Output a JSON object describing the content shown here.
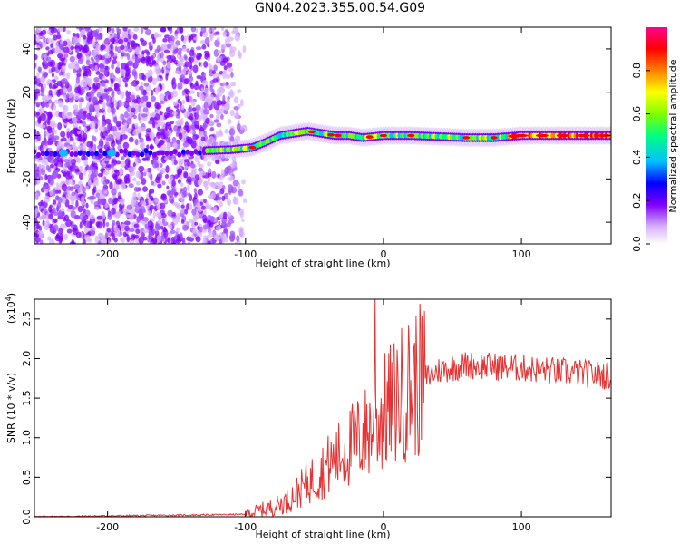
{
  "title": "GN04.2023.355.00.54.G09",
  "chart_data": [
    {
      "type": "heatmap",
      "name": "spectrogram",
      "xlabel": "Height of straight line (km)",
      "ylabel": "Frequency (Hz)",
      "xlim": [
        -253,
        165
      ],
      "ylim": [
        -50,
        50
      ],
      "xticks": [
        -200,
        -100,
        0,
        100
      ],
      "yticks": [
        -40,
        -20,
        0,
        20,
        40
      ],
      "colorbar": {
        "label": "Normalized spectral amplitude",
        "range": [
          0,
          1
        ],
        "ticks": [
          0.0,
          0.2,
          0.4,
          0.6,
          0.8
        ],
        "colormap": [
          "#ffffff",
          "#cc99ff",
          "#8000ff",
          "#0000ff",
          "#00c0ff",
          "#00ff80",
          "#80ff00",
          "#ffff00",
          "#ff8000",
          "#ff0000",
          "#ff00a0"
        ]
      },
      "ridge": {
        "x": [
          -130,
          -110,
          -95,
          -85,
          -75,
          -65,
          -55,
          -45,
          -35,
          -25,
          -15,
          0,
          20,
          40,
          60,
          80,
          100,
          120,
          140,
          165
        ],
        "y": [
          -7,
          -6.5,
          -5.5,
          -3,
          0,
          1,
          2,
          1,
          0,
          0,
          -1,
          0,
          0,
          -0.5,
          -1,
          -1,
          0,
          0,
          0,
          0
        ]
      },
      "noise_band_freq": -8
    },
    {
      "type": "line",
      "name": "snr",
      "xlabel": "Height of straight line (km)",
      "ylabel": "SNR (10 * v/v)",
      "y_multiplier": "(x10",
      "y_multiplier_exp": "4",
      "y_multiplier_close": ")",
      "xlim": [
        -253,
        165
      ],
      "ylim": [
        0,
        2.75
      ],
      "xticks": [
        -200,
        -100,
        0,
        100
      ],
      "yticks": [
        0.0,
        0.5,
        1.0,
        1.5,
        2.0,
        2.5
      ],
      "series_color": "#e63232",
      "envelope": {
        "x": [
          -253,
          -100,
          -90,
          -80,
          -70,
          -60,
          -50,
          -40,
          -30,
          -20,
          -10,
          0,
          10,
          20,
          30,
          40,
          60,
          80,
          100,
          120,
          140,
          165
        ],
        "y": [
          0.0,
          0.03,
          0.08,
          0.12,
          0.2,
          0.35,
          0.5,
          0.65,
          0.8,
          0.95,
          1.1,
          1.3,
          1.5,
          1.65,
          1.75,
          1.85,
          1.92,
          1.9,
          1.88,
          1.85,
          1.82,
          1.78
        ]
      },
      "spike": {
        "x": -6,
        "y": 2.75
      }
    }
  ]
}
